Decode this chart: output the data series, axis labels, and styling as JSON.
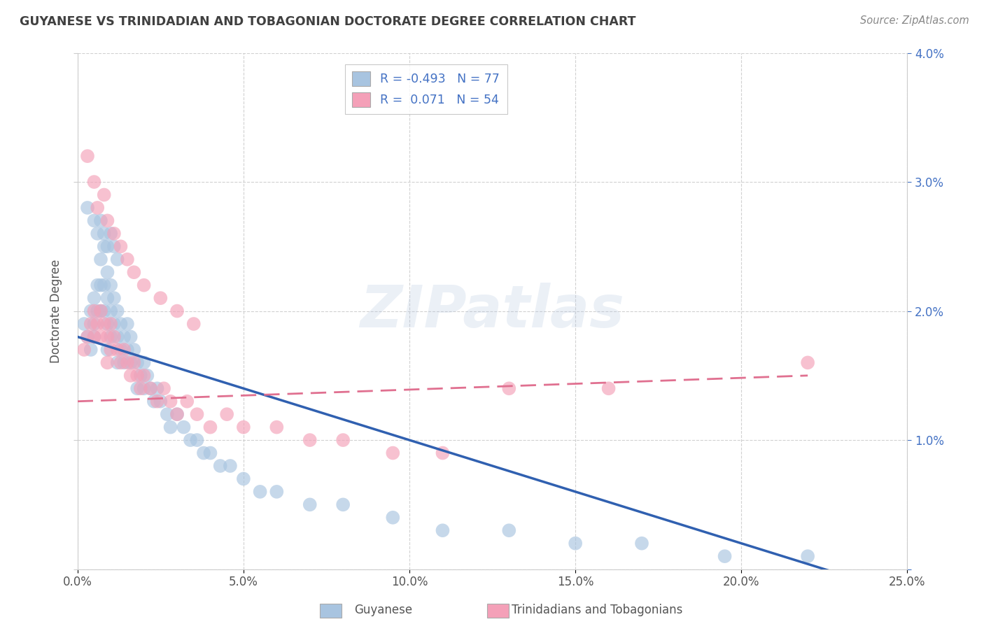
{
  "title": "GUYANESE VS TRINIDADIAN AND TOBAGONIAN DOCTORATE DEGREE CORRELATION CHART",
  "source": "Source: ZipAtlas.com",
  "ylabel_label": "Doctorate Degree",
  "legend_label1": "Guyanese",
  "legend_label2": "Trinidadians and Tobagonians",
  "R1": -0.493,
  "N1": 77,
  "R2": 0.071,
  "N2": 54,
  "color1": "#a8c4e0",
  "color2": "#f4a0b8",
  "line1_color": "#3060b0",
  "line2_color": "#e07090",
  "title_color": "#404040",
  "source_color": "#888888",
  "watermark": "ZIPatlas",
  "xlim": [
    0.0,
    0.25
  ],
  "ylim": [
    0.0,
    0.04
  ],
  "xticks": [
    0.0,
    0.05,
    0.1,
    0.15,
    0.2,
    0.25
  ],
  "yticks": [
    0.0,
    0.01,
    0.02,
    0.03,
    0.04
  ],
  "xticklabels": [
    "0.0%",
    "5.0%",
    "10.0%",
    "15.0%",
    "20.0%",
    "25.0%"
  ],
  "yticklabels_right": [
    "",
    "1.0%",
    "2.0%",
    "3.0%",
    "4.0%"
  ],
  "scatter1_x": [
    0.002,
    0.003,
    0.004,
    0.004,
    0.005,
    0.005,
    0.005,
    0.006,
    0.006,
    0.007,
    0.007,
    0.007,
    0.008,
    0.008,
    0.008,
    0.009,
    0.009,
    0.009,
    0.009,
    0.01,
    0.01,
    0.01,
    0.011,
    0.011,
    0.012,
    0.012,
    0.012,
    0.013,
    0.013,
    0.014,
    0.014,
    0.015,
    0.015,
    0.016,
    0.016,
    0.017,
    0.018,
    0.018,
    0.019,
    0.02,
    0.02,
    0.021,
    0.022,
    0.023,
    0.024,
    0.025,
    0.027,
    0.028,
    0.03,
    0.032,
    0.034,
    0.036,
    0.038,
    0.04,
    0.043,
    0.046,
    0.05,
    0.055,
    0.06,
    0.07,
    0.08,
    0.095,
    0.11,
    0.13,
    0.15,
    0.17,
    0.195,
    0.22,
    0.003,
    0.005,
    0.006,
    0.007,
    0.008,
    0.009,
    0.01,
    0.011,
    0.012
  ],
  "scatter1_y": [
    0.019,
    0.018,
    0.02,
    0.017,
    0.021,
    0.019,
    0.018,
    0.022,
    0.02,
    0.024,
    0.022,
    0.02,
    0.025,
    0.022,
    0.02,
    0.023,
    0.021,
    0.019,
    0.017,
    0.022,
    0.02,
    0.018,
    0.021,
    0.019,
    0.02,
    0.018,
    0.016,
    0.019,
    0.017,
    0.018,
    0.016,
    0.019,
    0.017,
    0.018,
    0.016,
    0.017,
    0.016,
    0.014,
    0.015,
    0.016,
    0.014,
    0.015,
    0.014,
    0.013,
    0.014,
    0.013,
    0.012,
    0.011,
    0.012,
    0.011,
    0.01,
    0.01,
    0.009,
    0.009,
    0.008,
    0.008,
    0.007,
    0.006,
    0.006,
    0.005,
    0.005,
    0.004,
    0.003,
    0.003,
    0.002,
    0.002,
    0.001,
    0.001,
    0.028,
    0.027,
    0.026,
    0.027,
    0.026,
    0.025,
    0.026,
    0.025,
    0.024
  ],
  "scatter2_x": [
    0.002,
    0.003,
    0.004,
    0.005,
    0.005,
    0.006,
    0.007,
    0.007,
    0.008,
    0.009,
    0.009,
    0.01,
    0.01,
    0.011,
    0.012,
    0.013,
    0.014,
    0.015,
    0.016,
    0.017,
    0.018,
    0.019,
    0.02,
    0.022,
    0.024,
    0.026,
    0.028,
    0.03,
    0.033,
    0.036,
    0.04,
    0.045,
    0.05,
    0.06,
    0.07,
    0.08,
    0.095,
    0.11,
    0.13,
    0.16,
    0.003,
    0.005,
    0.006,
    0.008,
    0.009,
    0.011,
    0.013,
    0.015,
    0.017,
    0.02,
    0.025,
    0.03,
    0.035,
    0.22
  ],
  "scatter2_y": [
    0.017,
    0.018,
    0.019,
    0.02,
    0.018,
    0.019,
    0.02,
    0.018,
    0.019,
    0.018,
    0.016,
    0.019,
    0.017,
    0.018,
    0.017,
    0.016,
    0.017,
    0.016,
    0.015,
    0.016,
    0.015,
    0.014,
    0.015,
    0.014,
    0.013,
    0.014,
    0.013,
    0.012,
    0.013,
    0.012,
    0.011,
    0.012,
    0.011,
    0.011,
    0.01,
    0.01,
    0.009,
    0.009,
    0.014,
    0.014,
    0.032,
    0.03,
    0.028,
    0.029,
    0.027,
    0.026,
    0.025,
    0.024,
    0.023,
    0.022,
    0.021,
    0.02,
    0.019,
    0.016
  ]
}
